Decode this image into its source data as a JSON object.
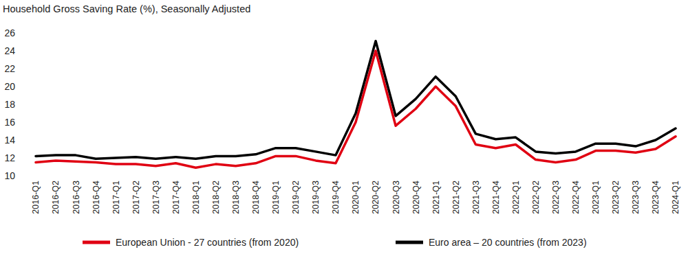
{
  "chart_data": {
    "type": "line",
    "title": "Household Gross Saving Rate (%), Seasonally Adjusted",
    "categories": [
      "2016-Q1",
      "2016-Q2",
      "2016-Q3",
      "2016-Q4",
      "2017-Q1",
      "2017-Q2",
      "2017-Q3",
      "2017-Q4",
      "2018-Q1",
      "2018-Q2",
      "2018-Q3",
      "2018-Q4",
      "2019-Q1",
      "2019-Q2",
      "2019-Q3",
      "2019-Q4",
      "2020-Q1",
      "2020-Q2",
      "2020-Q3",
      "2020-Q4",
      "2021-Q1",
      "2021-Q2",
      "2021-Q3",
      "2021-Q4",
      "2022-Q1",
      "2022-Q2",
      "2022-Q3",
      "2022-Q4",
      "2023-Q1",
      "2023-Q2",
      "2023-Q3",
      "2023-Q4",
      "2024-Q1"
    ],
    "series": [
      {
        "name": "European Union - 27 countries (from 2020)",
        "color": "#e00012",
        "values": [
          11.5,
          11.7,
          11.6,
          11.5,
          11.3,
          11.3,
          11.1,
          11.4,
          10.9,
          11.3,
          11.1,
          11.4,
          12.2,
          12.2,
          11.7,
          11.4,
          16.0,
          24.0,
          15.6,
          17.5,
          20.0,
          17.8,
          13.5,
          13.1,
          13.5,
          11.8,
          11.5,
          11.8,
          12.8,
          12.8,
          12.6,
          13.0,
          14.4
        ]
      },
      {
        "name": "Euro area – 20 countries (from 2023)",
        "color": "#000000",
        "values": [
          12.2,
          12.3,
          12.3,
          11.9,
          12.0,
          12.1,
          11.9,
          12.1,
          11.9,
          12.2,
          12.2,
          12.4,
          13.1,
          13.1,
          12.7,
          12.3,
          17.0,
          25.1,
          16.7,
          18.6,
          21.1,
          18.9,
          14.7,
          14.1,
          14.3,
          12.7,
          12.5,
          12.7,
          13.6,
          13.6,
          13.3,
          14.0,
          15.3
        ]
      }
    ],
    "ylim": [
      10,
      26
    ],
    "yticks": [
      10,
      12,
      14,
      16,
      18,
      20,
      22,
      24,
      26
    ],
    "grid": false,
    "legend": "bottom"
  }
}
